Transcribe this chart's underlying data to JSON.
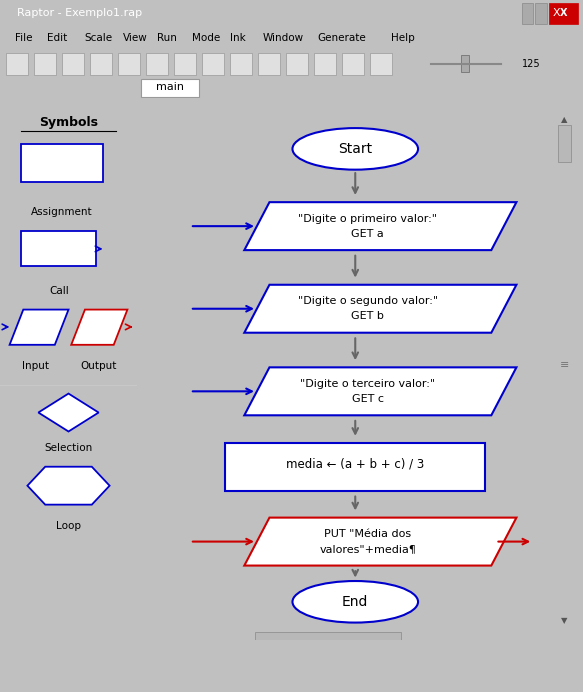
{
  "title": "Raptor - Exemplo1.rap",
  "node_blue": "#0000cc",
  "node_red": "#cc0000",
  "arrow_color": "#555555",
  "input1_text": [
    "\"Digite o primeiro valor:\"",
    "GET a"
  ],
  "input2_text": [
    "\"Digite o segundo valor:\"",
    "GET b"
  ],
  "input3_text": [
    "\"Digite o terceiro valor:\"",
    "GET c"
  ],
  "assign_text": "media ← (a + b + c) / 3",
  "output_text": [
    "PUT \"Média dos",
    "valores\"+media¶"
  ]
}
